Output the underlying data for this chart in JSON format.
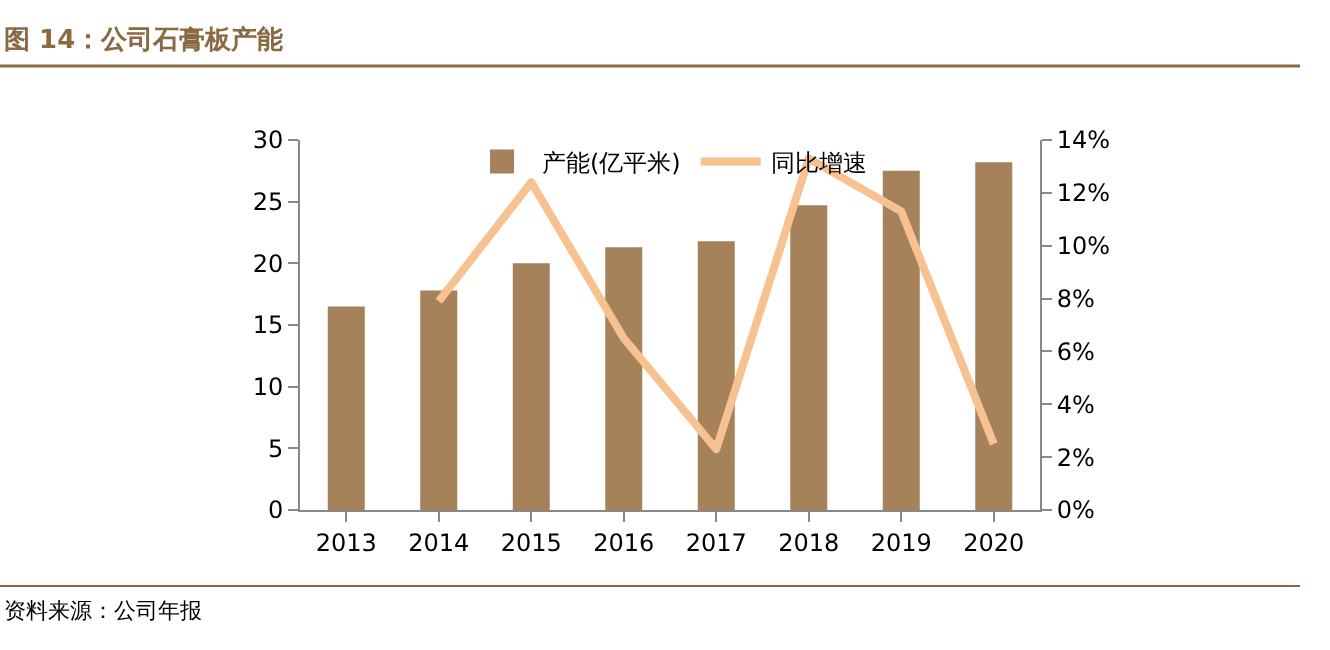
{
  "chart_data": {
    "type": "bar",
    "title": "图 14：公司石膏板产能",
    "categories": [
      "2013",
      "2014",
      "2015",
      "2016",
      "2017",
      "2018",
      "2019",
      "2020"
    ],
    "series": [
      {
        "name": "产能(亿平米)",
        "color": "#a5825a",
        "values": [
          16.5,
          17.8,
          20.0,
          21.3,
          21.8,
          24.7,
          27.5,
          28.2
        ]
      },
      {
        "name": "同比增速",
        "type": "line",
        "axis": "y2",
        "color": "#f7c190",
        "values": [
          null,
          7.9,
          12.4,
          6.5,
          2.3,
          13.3,
          11.3,
          2.5
        ]
      }
    ],
    "ylim": [
      0,
      30
    ],
    "yticks": [
      0,
      5,
      10,
      15,
      20,
      25,
      30
    ],
    "y2lim": [
      0,
      14
    ],
    "y2ticks": [
      {
        "value": 0,
        "label": "0%"
      },
      {
        "value": 2,
        "label": "2%"
      },
      {
        "value": 4,
        "label": "4%"
      },
      {
        "value": 6,
        "label": "6%"
      },
      {
        "value": 8,
        "label": "8%"
      },
      {
        "value": 10,
        "label": "10%"
      },
      {
        "value": 12,
        "label": "12%"
      },
      {
        "value": 14,
        "label": "14%"
      }
    ],
    "grid": false,
    "legend": "top",
    "marker": "none",
    "annotations": [
      "资料来源：公司年报"
    ]
  }
}
